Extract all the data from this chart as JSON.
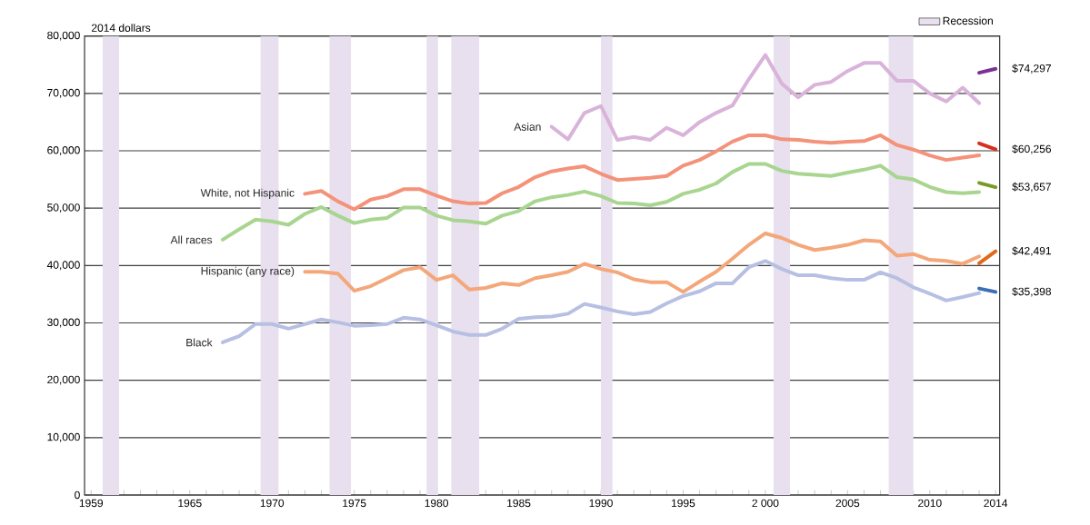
{
  "chart_data": {
    "type": "line",
    "ylabel": "2014   dollars",
    "xlim": [
      1958.6,
      2014.25
    ],
    "ylim": [
      0,
      80000
    ],
    "yticks": [
      0,
      {
        "value": 10000,
        "label": "10,000"
      },
      {
        "value": 20000,
        "label": "20,000"
      },
      {
        "value": 30000,
        "label": "30,000"
      },
      {
        "value": 40000,
        "label": "40,000"
      },
      {
        "value": 50000,
        "label": "50,000"
      },
      {
        "value": 60000,
        "label": "60,000"
      },
      {
        "value": 70000,
        "label": "70,000"
      },
      {
        "value": 80000,
        "label": "80,000"
      }
    ],
    "xticks": [
      1959,
      {
        "value": 1960,
        "label": null
      },
      {
        "value": 1961,
        "label": null
      },
      {
        "value": 1962,
        "label": null
      },
      {
        "value": 1963,
        "label": null
      },
      {
        "value": 1964,
        "label": null
      },
      1965,
      {
        "value": 1966,
        "label": null
      },
      {
        "value": 1967,
        "label": null
      },
      {
        "value": 1968,
        "label": null
      },
      {
        "value": 1969,
        "label": null
      },
      1970,
      {
        "value": 1971,
        "label": null
      },
      {
        "value": 1972,
        "label": null
      },
      {
        "value": 1973,
        "label": null
      },
      {
        "value": 1974,
        "label": null
      },
      1975,
      {
        "value": 1976,
        "label": null
      },
      {
        "value": 1977,
        "label": null
      },
      {
        "value": 1978,
        "label": null
      },
      {
        "value": 1979,
        "label": null
      },
      1980,
      {
        "value": 1981,
        "label": null
      },
      {
        "value": 1982,
        "label": null
      },
      {
        "value": 1983,
        "label": null
      },
      {
        "value": 1984,
        "label": null
      },
      1985,
      {
        "value": 1986,
        "label": null
      },
      {
        "value": 1987,
        "label": null
      },
      {
        "value": 1988,
        "label": null
      },
      {
        "value": 1989,
        "label": null
      },
      1990,
      {
        "value": 1991,
        "label": null
      },
      {
        "value": 1992,
        "label": null
      },
      {
        "value": 1993,
        "label": null
      },
      {
        "value": 1994,
        "label": null
      },
      1995,
      {
        "value": 1996,
        "label": null
      },
      {
        "value": 1997,
        "label": null
      },
      {
        "value": 1998,
        "label": null
      },
      {
        "value": 1999,
        "label": null
      },
      {
        "value": 2000,
        "label": "2 000"
      },
      {
        "value": 2001,
        "label": null
      },
      {
        "value": 2002,
        "label": null
      },
      {
        "value": 2003,
        "label": null
      },
      {
        "value": 2004,
        "label": null
      },
      2005,
      {
        "value": 2006,
        "label": null
      },
      {
        "value": 2007,
        "label": null
      },
      {
        "value": 2008,
        "label": null
      },
      {
        "value": 2009,
        "label": null
      },
      2010,
      {
        "value": 2011,
        "label": null
      },
      {
        "value": 2012,
        "label": null
      },
      {
        "value": 2013,
        "label": null
      },
      2014
    ],
    "grid": "y",
    "legend": "top right",
    "series": [
      {
        "name": "Asian",
        "color": "#d9b3d9",
        "x": [
          1987,
          1988,
          1989,
          1990,
          1991,
          1992,
          1993,
          1994,
          1995,
          1996,
          1997,
          1998,
          1999,
          2000,
          2001,
          2002,
          2003,
          2004,
          2005,
          2006,
          2007,
          2008,
          2009,
          2010,
          2011,
          2012,
          2013
        ],
        "values": [
          64200,
          62000,
          66600,
          67800,
          61900,
          62400,
          61900,
          64000,
          62700,
          65000,
          66600,
          67900,
          72500,
          76700,
          71700,
          69300,
          71500,
          72000,
          73900,
          75300,
          75300,
          72200,
          72200,
          70000,
          68600,
          71000,
          68300
        ]
      },
      {
        "name": "White, not Hispanic",
        "color": "#f4927a",
        "x": [
          1972,
          1973,
          1974,
          1975,
          1976,
          1977,
          1978,
          1979,
          1980,
          1981,
          1982,
          1983,
          1984,
          1985,
          1986,
          1987,
          1988,
          1989,
          1990,
          1991,
          1992,
          1993,
          1994,
          1995,
          1996,
          1997,
          1998,
          1999,
          2000,
          2001,
          2002,
          2003,
          2004,
          2005,
          2006,
          2007,
          2008,
          2009,
          2010,
          2011,
          2012,
          2013
        ],
        "values": [
          52500,
          53000,
          51200,
          49800,
          51500,
          52100,
          53300,
          53300,
          52200,
          51200,
          50800,
          50900,
          52600,
          53700,
          55400,
          56400,
          56900,
          57300,
          56000,
          54900,
          55100,
          55300,
          55600,
          57400,
          58400,
          59900,
          61600,
          62700,
          62700,
          62000,
          61900,
          61600,
          61400,
          61600,
          61700,
          62700,
          61000,
          60200,
          59200,
          58400,
          58800,
          59200
        ]
      },
      {
        "name": "All races",
        "color": "#a8d58f",
        "x": [
          1967,
          1968,
          1969,
          1970,
          1971,
          1972,
          1973,
          1974,
          1975,
          1976,
          1977,
          1978,
          1979,
          1980,
          1981,
          1982,
          1983,
          1984,
          1985,
          1986,
          1987,
          1988,
          1989,
          1990,
          1991,
          1992,
          1993,
          1994,
          1995,
          1996,
          1997,
          1998,
          1999,
          2000,
          2001,
          2002,
          2003,
          2004,
          2005,
          2006,
          2007,
          2008,
          2009,
          2010,
          2011,
          2012,
          2013
        ],
        "values": [
          44500,
          46300,
          48000,
          47700,
          47100,
          49000,
          50200,
          48700,
          47400,
          48000,
          48300,
          50100,
          50100,
          48700,
          47900,
          47700,
          47300,
          48700,
          49500,
          51200,
          51900,
          52300,
          52900,
          52100,
          50900,
          50800,
          50500,
          51100,
          52500,
          53200,
          54300,
          56300,
          57700,
          57700,
          56500,
          56000,
          55800,
          55600,
          56200,
          56700,
          57400,
          55400,
          55000,
          53700,
          52800,
          52600,
          52800
        ]
      },
      {
        "name": "Hispanic (any race)",
        "color": "#f4a77a",
        "x": [
          1972,
          1973,
          1974,
          1975,
          1976,
          1977,
          1978,
          1979,
          1980,
          1981,
          1982,
          1983,
          1984,
          1985,
          1986,
          1987,
          1988,
          1989,
          1990,
          1991,
          1992,
          1993,
          1994,
          1995,
          1996,
          1997,
          1998,
          1999,
          2000,
          2001,
          2002,
          2003,
          2004,
          2005,
          2006,
          2007,
          2008,
          2009,
          2010,
          2011,
          2012,
          2013
        ],
        "values": [
          38900,
          38900,
          38600,
          35600,
          36400,
          37800,
          39200,
          39700,
          37500,
          38300,
          35800,
          36100,
          36900,
          36600,
          37800,
          38300,
          38900,
          40300,
          39400,
          38800,
          37600,
          37100,
          37100,
          35400,
          37200,
          38900,
          41200,
          43600,
          45600,
          44800,
          43600,
          42700,
          43100,
          43600,
          44400,
          44200,
          41700,
          42000,
          41000,
          40800,
          40300,
          41600
        ]
      },
      {
        "name": "Black",
        "color": "#b7c0e3",
        "x": [
          1967,
          1968,
          1969,
          1970,
          1971,
          1972,
          1973,
          1974,
          1975,
          1976,
          1977,
          1978,
          1979,
          1980,
          1981,
          1982,
          1983,
          1984,
          1985,
          1986,
          1987,
          1988,
          1989,
          1990,
          1991,
          1992,
          1993,
          1994,
          1995,
          1996,
          1997,
          1998,
          1999,
          2000,
          2001,
          2002,
          2003,
          2004,
          2005,
          2006,
          2007,
          2008,
          2009,
          2010,
          2011,
          2012,
          2013
        ],
        "values": [
          26600,
          27700,
          29800,
          29800,
          29000,
          29800,
          30600,
          30100,
          29500,
          29600,
          29800,
          30900,
          30600,
          29600,
          28500,
          27900,
          27900,
          29000,
          30700,
          31000,
          31100,
          31600,
          33300,
          32700,
          32000,
          31500,
          31900,
          33400,
          34700,
          35500,
          36900,
          36900,
          39700,
          40800,
          39400,
          38300,
          38300,
          37800,
          37500,
          37500,
          38800,
          37800,
          36200,
          35100,
          33900,
          34500,
          35200
        ]
      },
      {
        "color": "#7b3294",
        "x": [
          2013,
          2014
        ],
        "values": [
          73600,
          74297
        ],
        "value_labels": [
          null,
          "$74,297"
        ]
      },
      {
        "color": "#d7301f",
        "x": [
          2013,
          2014
        ],
        "values": [
          61300,
          60256
        ],
        "value_labels": [
          null,
          "$60,256"
        ]
      },
      {
        "color": "#7a9a2a",
        "x": [
          2013,
          2014
        ],
        "values": [
          54400,
          53657
        ],
        "value_labels": [
          null,
          "$53,657"
        ]
      },
      {
        "color": "#e06a1b",
        "x": [
          2013,
          2014
        ],
        "values": [
          40400,
          42491
        ],
        "value_labels": [
          null,
          "$42,491"
        ]
      },
      {
        "color": "#3b6fb6",
        "x": [
          2013,
          2014
        ],
        "values": [
          36000,
          35398
        ],
        "value_labels": [
          null,
          "$35,398"
        ]
      }
    ],
    "bands": [
      {
        "axis": "x",
        "from": 1959.7,
        "to": 1960.7,
        "color": "#e8e0ee",
        "label": "Recession"
      },
      {
        "axis": "x",
        "from": 1969.3,
        "to": 1970.4,
        "color": "#e8e0ee"
      },
      {
        "axis": "x",
        "from": 1973.5,
        "to": 1974.8,
        "color": "#e8e0ee"
      },
      {
        "axis": "x",
        "from": 1979.4,
        "to": 1980.1,
        "color": "#e8e0ee"
      },
      {
        "axis": "x",
        "from": 1980.9,
        "to": 1982.6,
        "color": "#e8e0ee"
      },
      {
        "axis": "x",
        "from": 1990.0,
        "to": 1990.7,
        "color": "#e8e0ee"
      },
      {
        "axis": "x",
        "from": 2000.5,
        "to": 2001.5,
        "color": "#e8e0ee"
      },
      {
        "axis": "x",
        "from": 2007.5,
        "to": 2009.0,
        "color": "#e8e0ee"
      }
    ]
  }
}
